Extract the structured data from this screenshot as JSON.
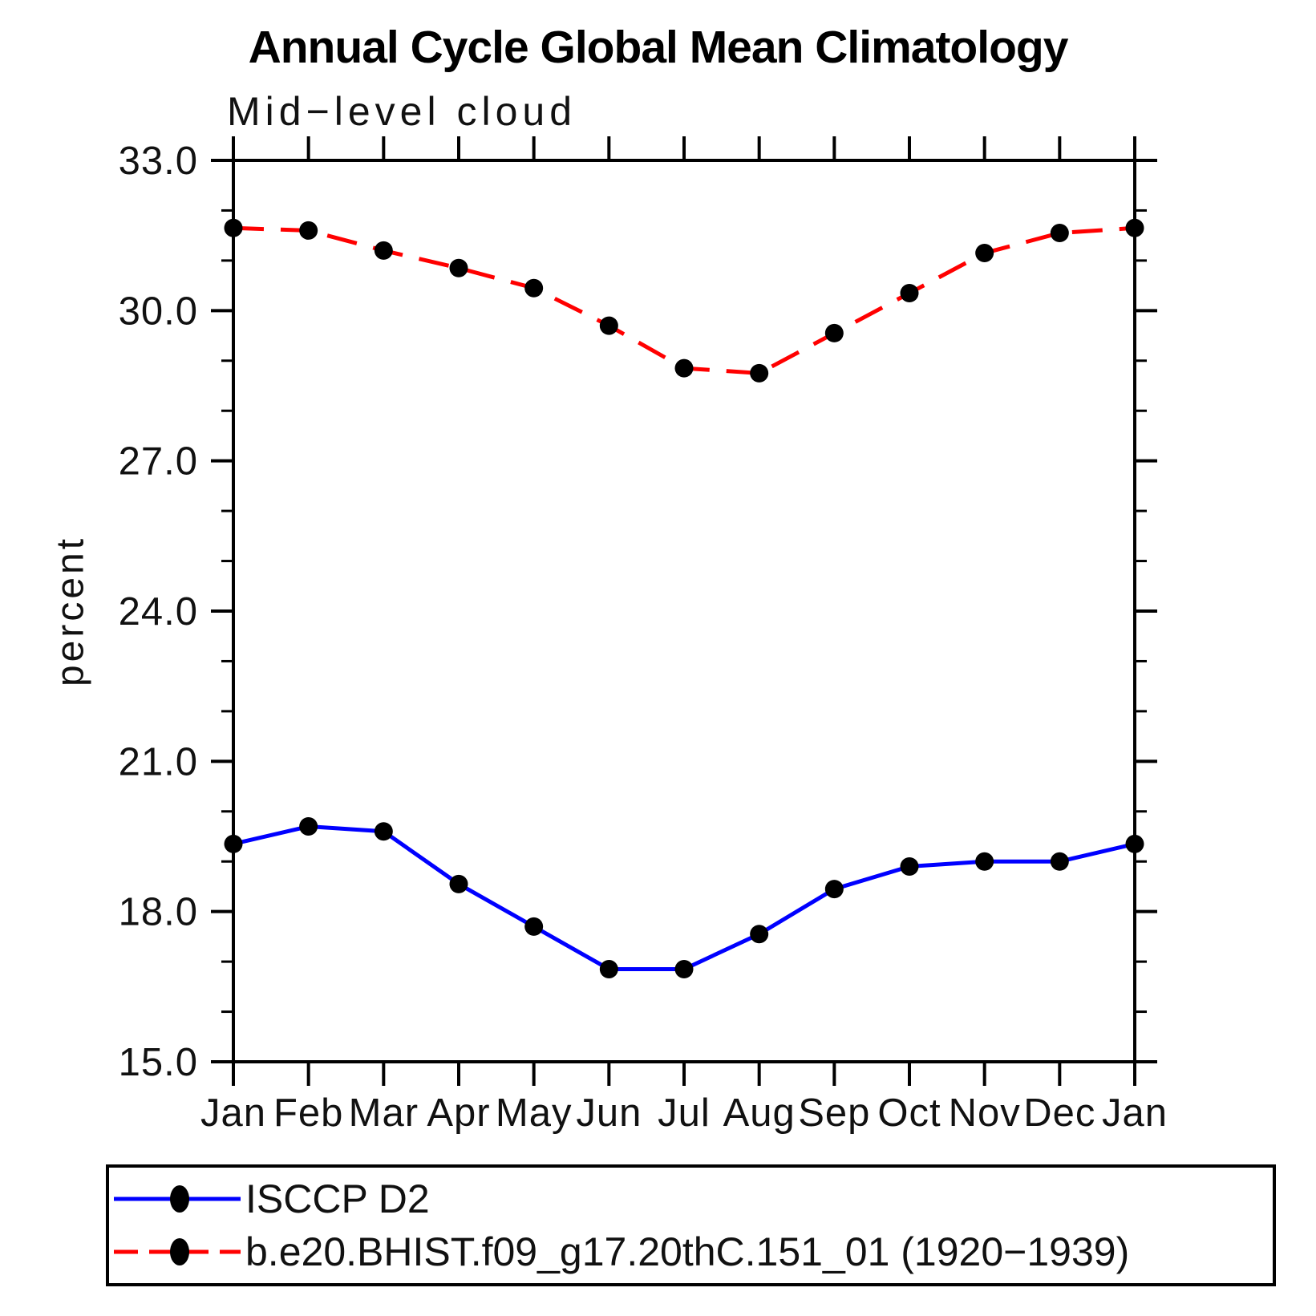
{
  "header": {
    "title": "Annual Cycle Global Mean Climatology"
  },
  "chart_data": {
    "type": "line",
    "title": "Annual Cycle Global Mean Climatology",
    "subtitle": "Mid−level cloud",
    "xlabel": "",
    "ylabel": "percent",
    "categories": [
      "Jan",
      "Feb",
      "Mar",
      "Apr",
      "May",
      "Jun",
      "Jul",
      "Aug",
      "Sep",
      "Oct",
      "Nov",
      "Dec",
      "Jan"
    ],
    "ylim": [
      15.0,
      33.0
    ],
    "y_major_ticks": [
      15.0,
      18.0,
      21.0,
      24.0,
      27.0,
      30.0,
      33.0
    ],
    "y_tick_labels": [
      "15.0",
      "18.0",
      "21.0",
      "24.0",
      "27.0",
      "30.0",
      "33.0"
    ],
    "y_minor_step": 1.0,
    "grid": false,
    "legend_position": "bottom",
    "marker_color": "#000000",
    "axis_color": "#000000",
    "series": [
      {
        "name": "ISCCP D2",
        "color": "#0000ff",
        "style": "solid",
        "marker": "circle",
        "values": [
          19.35,
          19.7,
          19.6,
          18.55,
          17.7,
          16.85,
          16.85,
          17.55,
          18.45,
          18.9,
          19.0,
          19.0,
          19.35
        ]
      },
      {
        "name": "b.e20.BHIST.f09_g17.20thC.151_01 (1920−1939)",
        "color": "#ff0000",
        "style": "dashed",
        "marker": "circle",
        "values": [
          31.65,
          31.6,
          31.2,
          30.85,
          30.45,
          29.7,
          28.85,
          28.75,
          29.55,
          30.35,
          31.15,
          31.55,
          31.65
        ]
      }
    ]
  }
}
